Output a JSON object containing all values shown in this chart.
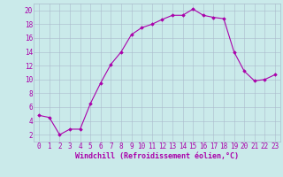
{
  "x": [
    0,
    1,
    2,
    3,
    4,
    5,
    6,
    7,
    8,
    9,
    10,
    11,
    12,
    13,
    14,
    15,
    16,
    17,
    18,
    19,
    20,
    21,
    22,
    23
  ],
  "y": [
    4.8,
    4.5,
    2.0,
    2.8,
    2.8,
    6.5,
    9.5,
    12.2,
    14.0,
    16.5,
    17.5,
    18.0,
    18.7,
    19.3,
    19.3,
    20.2,
    19.3,
    19.0,
    18.8,
    14.0,
    11.2,
    9.8,
    10.0,
    10.7
  ],
  "line_color": "#aa00aa",
  "marker": "D",
  "marker_size": 1.8,
  "line_width": 0.8,
  "bg_color": "#caeaea",
  "grid_color": "#aabbcc",
  "xlabel": "Windchill (Refroidissement éolien,°C)",
  "xlabel_fontsize": 6,
  "xlabel_color": "#aa00aa",
  "ylabel_ticks": [
    2,
    4,
    6,
    8,
    10,
    12,
    14,
    16,
    18,
    20
  ],
  "xlim": [
    -0.5,
    23.5
  ],
  "ylim": [
    1,
    21
  ],
  "tick_fontsize": 5.5,
  "tick_color": "#aa00aa"
}
